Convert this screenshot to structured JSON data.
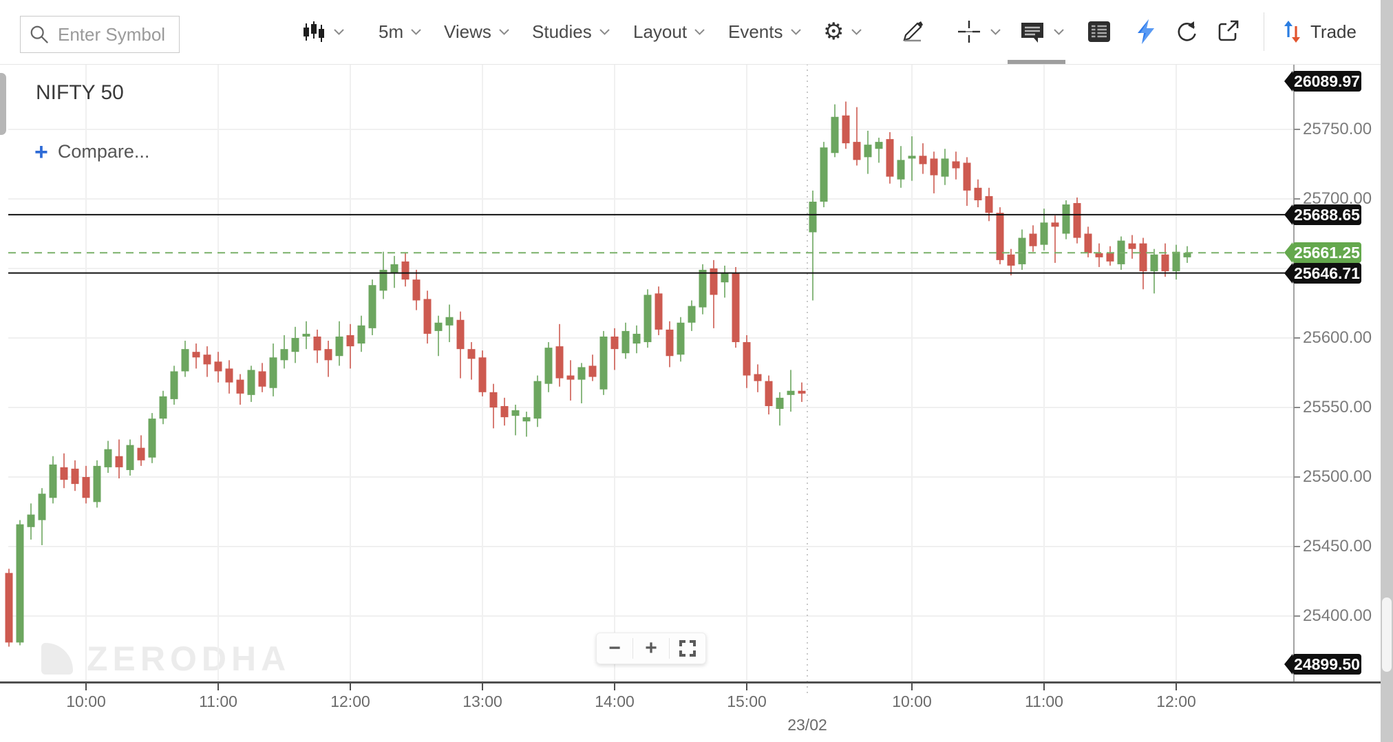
{
  "toolbar": {
    "search_placeholder": "Enter Symbol",
    "interval": "5m",
    "views_label": "Views",
    "studies_label": "Studies",
    "layout_label": "Layout",
    "events_label": "Events",
    "trade_label": "Trade",
    "icons": [
      "search-icon",
      "chart-type-candles-icon",
      "gear-icon",
      "draw-pencil-icon",
      "crosshair-icon",
      "annotation-icon",
      "table-icon",
      "flash-icon",
      "refresh-icon",
      "popout-icon",
      "trade-arrows-icon"
    ]
  },
  "chart_header": {
    "symbol": "NIFTY 50",
    "compare_label": "Compare...",
    "compare_plus": "+"
  },
  "watermark": "ZERODHA",
  "zoom_controls": {
    "out": "−",
    "in": "+",
    "fullscreen": "fullscreen-corners-icon"
  },
  "price_axis": {
    "labeled_ticks": [
      {
        "label": "25750.00",
        "price": 25750
      },
      {
        "label": "25700.00",
        "price": 25700
      },
      {
        "label": "25600.00",
        "price": 25600
      },
      {
        "label": "25550.00",
        "price": 25550
      },
      {
        "label": "25500.00",
        "price": 25500
      },
      {
        "label": "25450.00",
        "price": 25450
      },
      {
        "label": "25400.00",
        "price": 25400
      }
    ],
    "unlabeled_gridline_prices": [
      25650
    ],
    "badges": [
      {
        "label": "26089.97",
        "price": 26089.97,
        "bg": "#0f0f0f",
        "pinned": "top"
      },
      {
        "label": "25688.65",
        "price": 25688.65,
        "bg": "#0f0f0f",
        "pinned": null
      },
      {
        "label": "25661.25",
        "price": 25661.25,
        "bg": "#64a84d",
        "pinned": null
      },
      {
        "label": "25646.71",
        "price": 25646.71,
        "bg": "#0f0f0f",
        "pinned": null
      },
      {
        "label": "24899.50",
        "price": 24899.5,
        "bg": "#0f0f0f",
        "pinned": "bottom"
      }
    ]
  },
  "time_axis": {
    "ticks": [
      {
        "label": "10:00",
        "index": 7
      },
      {
        "label": "11:00",
        "index": 19
      },
      {
        "label": "12:00",
        "index": 31
      },
      {
        "label": "13:00",
        "index": 43
      },
      {
        "label": "14:00",
        "index": 55
      },
      {
        "label": "15:00",
        "index": 67
      },
      {
        "label": "10:00",
        "index": 82
      },
      {
        "label": "11:00",
        "index": 94
      },
      {
        "label": "12:00",
        "index": 106
      }
    ],
    "session_break": {
      "label": "23/02",
      "after_index": 72
    }
  },
  "chart_data": {
    "type": "candlestick",
    "symbol": "NIFTY 50",
    "interval": "5m",
    "title": "NIFTY 50 5-minute candlestick chart",
    "ylim": [
      25353,
      25797
    ],
    "grid": true,
    "colors": {
      "up": "#6CA65F",
      "down": "#CD5A50",
      "current_price_line": "#79B068",
      "level_line": "#101010"
    },
    "h_lines": [
      {
        "price": 25688.65,
        "style": "solid",
        "color": "#101010"
      },
      {
        "price": 25661.25,
        "style": "dashed",
        "color": "#79B068"
      },
      {
        "price": 25646.71,
        "style": "solid",
        "color": "#101010"
      }
    ],
    "last_price": 25661.25,
    "sessions": [
      {
        "date_label": "",
        "start_index": 0
      },
      {
        "date_label": "23/02",
        "start_index": 73
      }
    ],
    "candles": [
      [
        "09:25",
        25431,
        25434,
        25378,
        25381
      ],
      [
        "09:30",
        25381,
        25469,
        25379,
        25466
      ],
      [
        "09:35",
        25464,
        25481,
        25455,
        25473
      ],
      [
        "09:40",
        25469,
        25492,
        25451,
        25488
      ],
      [
        "09:45",
        25485,
        25515,
        25481,
        25509
      ],
      [
        "09:50",
        25507,
        25517,
        25492,
        25498
      ],
      [
        "09:55",
        25506,
        25512,
        25490,
        25495
      ],
      [
        "10:00",
        25500,
        25508,
        25481,
        25485
      ],
      [
        "10:05",
        25482,
        25512,
        25478,
        25508
      ],
      [
        "10:10",
        25507,
        25526,
        25503,
        25520
      ],
      [
        "10:15",
        25515,
        25527,
        25499,
        25507
      ],
      [
        "10:20",
        25505,
        25527,
        25501,
        25523
      ],
      [
        "10:25",
        25521,
        25530,
        25508,
        25512
      ],
      [
        "10:30",
        25514,
        25546,
        25510,
        25542
      ],
      [
        "10:35",
        25542,
        25562,
        25538,
        25558
      ],
      [
        "10:40",
        25556,
        25580,
        25552,
        25576
      ],
      [
        "10:45",
        25576,
        25598,
        25572,
        25592
      ],
      [
        "10:50",
        25590,
        25596,
        25578,
        25586
      ],
      [
        "10:55",
        25588,
        25594,
        25572,
        25581
      ],
      [
        "11:00",
        25583,
        25590,
        25568,
        25576
      ],
      [
        "11:05",
        25578,
        25584,
        25560,
        25568
      ],
      [
        "11:10",
        25570,
        25574,
        25552,
        25560
      ],
      [
        "11:15",
        25559,
        25580,
        25554,
        25577
      ],
      [
        "11:20",
        25576,
        25582,
        25561,
        25565
      ],
      [
        "11:25",
        25564,
        25596,
        25558,
        25586
      ],
      [
        "11:30",
        25584,
        25602,
        25578,
        25592
      ],
      [
        "11:35",
        25590,
        25608,
        25582,
        25600
      ],
      [
        "11:40",
        25601,
        25612,
        25592,
        25603
      ],
      [
        "11:45",
        25601,
        25606,
        25582,
        25591
      ],
      [
        "11:50",
        25592,
        25598,
        25572,
        25584
      ],
      [
        "11:55",
        25587,
        25612,
        25580,
        25601
      ],
      [
        "12:00",
        25602,
        25610,
        25578,
        25594
      ],
      [
        "12:05",
        25596,
        25616,
        25590,
        25609
      ],
      [
        "12:10",
        25607,
        25642,
        25602,
        25638
      ],
      [
        "12:15",
        25634,
        25662,
        25628,
        25649
      ],
      [
        "12:20",
        25647,
        25659,
        25636,
        25653
      ],
      [
        "12:25",
        25655,
        25661,
        25637,
        25642
      ],
      [
        "12:30",
        25642,
        25649,
        25620,
        25627
      ],
      [
        "12:35",
        25628,
        25634,
        25596,
        25603
      ],
      [
        "12:40",
        25605,
        25616,
        25587,
        25611
      ],
      [
        "12:45",
        25609,
        25624,
        25597,
        25615
      ],
      [
        "12:50",
        25613,
        25619,
        25571,
        25592
      ],
      [
        "12:55",
        25592,
        25597,
        25570,
        25585
      ],
      [
        "13:00",
        25586,
        25591,
        25558,
        25561
      ],
      [
        "13:05",
        25561,
        25567,
        25535,
        25550
      ],
      [
        "13:10",
        25551,
        25557,
        25537,
        25543
      ],
      [
        "13:15",
        25544,
        25552,
        25530,
        25548
      ],
      [
        "13:20",
        25540,
        25547,
        25529,
        25543
      ],
      [
        "13:25",
        25542,
        25573,
        25536,
        25569
      ],
      [
        "13:30",
        25567,
        25597,
        25561,
        25593
      ],
      [
        "13:35",
        25594,
        25610,
        25565,
        25571
      ],
      [
        "13:40",
        25573,
        25584,
        25555,
        25570
      ],
      [
        "13:45",
        25570,
        25582,
        25553,
        25579
      ],
      [
        "13:50",
        25580,
        25588,
        25569,
        25572
      ],
      [
        "13:55",
        25563,
        25605,
        25559,
        25601
      ],
      [
        "14:00",
        25601,
        25607,
        25577,
        25592
      ],
      [
        "14:05",
        25589,
        25611,
        25585,
        25605
      ],
      [
        "14:10",
        25596,
        25609,
        25589,
        25603
      ],
      [
        "14:15",
        25597,
        25635,
        25593,
        25631
      ],
      [
        "14:20",
        25632,
        25637,
        25602,
        25606
      ],
      [
        "14:25",
        25606,
        25612,
        25579,
        25587
      ],
      [
        "14:30",
        25588,
        25615,
        25583,
        25611
      ],
      [
        "14:35",
        25611,
        25627,
        25605,
        25623
      ],
      [
        "14:40",
        25622,
        25653,
        25617,
        25649
      ],
      [
        "14:45",
        25650,
        25656,
        25607,
        25631
      ],
      [
        "14:50",
        25640,
        25652,
        25629,
        25647
      ],
      [
        "14:55",
        25647,
        25651,
        25593,
        25597
      ],
      [
        "15:00",
        25597,
        25602,
        25564,
        25573
      ],
      [
        "15:05",
        25574,
        25581,
        25561,
        25569
      ],
      [
        "15:10",
        25569,
        25573,
        25545,
        25551
      ],
      [
        "15:15",
        25549,
        25561,
        25537,
        25557
      ],
      [
        "15:20",
        25559,
        25577,
        25547,
        25562
      ],
      [
        "15:25",
        25562,
        25568,
        25554,
        25560
      ],
      [
        "09:15",
        25676,
        25706,
        25627,
        25698
      ],
      [
        "09:20",
        25698,
        25741,
        25694,
        25737
      ],
      [
        "09:25",
        25733,
        25768,
        25730,
        25759
      ],
      [
        "09:30",
        25760,
        25770,
        25736,
        25740
      ],
      [
        "09:35",
        25741,
        25766,
        25724,
        25728
      ],
      [
        "09:40",
        25730,
        25749,
        25718,
        25739
      ],
      [
        "09:45",
        25736,
        25744,
        25726,
        25741
      ],
      [
        "09:50",
        25743,
        25748,
        25711,
        25716
      ],
      [
        "09:55",
        25714,
        25738,
        25708,
        25728
      ],
      [
        "10:00",
        25729,
        25745,
        25713,
        25731
      ],
      [
        "10:05",
        25731,
        25740,
        25718,
        25725
      ],
      [
        "10:10",
        25729,
        25734,
        25704,
        25717
      ],
      [
        "10:15",
        25716,
        25736,
        25710,
        25729
      ],
      [
        "10:20",
        25727,
        25734,
        25714,
        25722
      ],
      [
        "10:25",
        25726,
        25730,
        25695,
        25706
      ],
      [
        "10:30",
        25708,
        25714,
        25694,
        25699
      ],
      [
        "10:35",
        25702,
        25708,
        25684,
        25690
      ],
      [
        "10:40",
        25690,
        25694,
        25653,
        25656
      ],
      [
        "10:45",
        25660,
        25664,
        25645,
        25652
      ],
      [
        "10:50",
        25653,
        25678,
        25649,
        25672
      ],
      [
        "10:55",
        25675,
        25681,
        25662,
        25666
      ],
      [
        "11:00",
        25667,
        25693,
        25663,
        25683
      ],
      [
        "11:05",
        25683,
        25688,
        25654,
        25680
      ],
      [
        "11:10",
        25675,
        25699,
        25671,
        25696
      ],
      [
        "11:15",
        25697,
        25701,
        25668,
        25672
      ],
      [
        "11:20",
        25675,
        25680,
        25658,
        25661
      ],
      [
        "11:25",
        25661,
        25668,
        25651,
        25658
      ],
      [
        "11:30",
        25661,
        25666,
        25652,
        25655
      ],
      [
        "11:35",
        25653,
        25673,
        25649,
        25670
      ],
      [
        "11:40",
        25668,
        25674,
        25657,
        25664
      ],
      [
        "11:45",
        25668,
        25672,
        25635,
        25648
      ],
      [
        "11:50",
        25648,
        25664,
        25632,
        25660
      ],
      [
        "11:55",
        25660,
        25668,
        25644,
        25648
      ],
      [
        "12:00",
        25648,
        25667,
        25642,
        25662
      ],
      [
        "12:05",
        25658,
        25666,
        25654,
        25661.25
      ]
    ]
  }
}
